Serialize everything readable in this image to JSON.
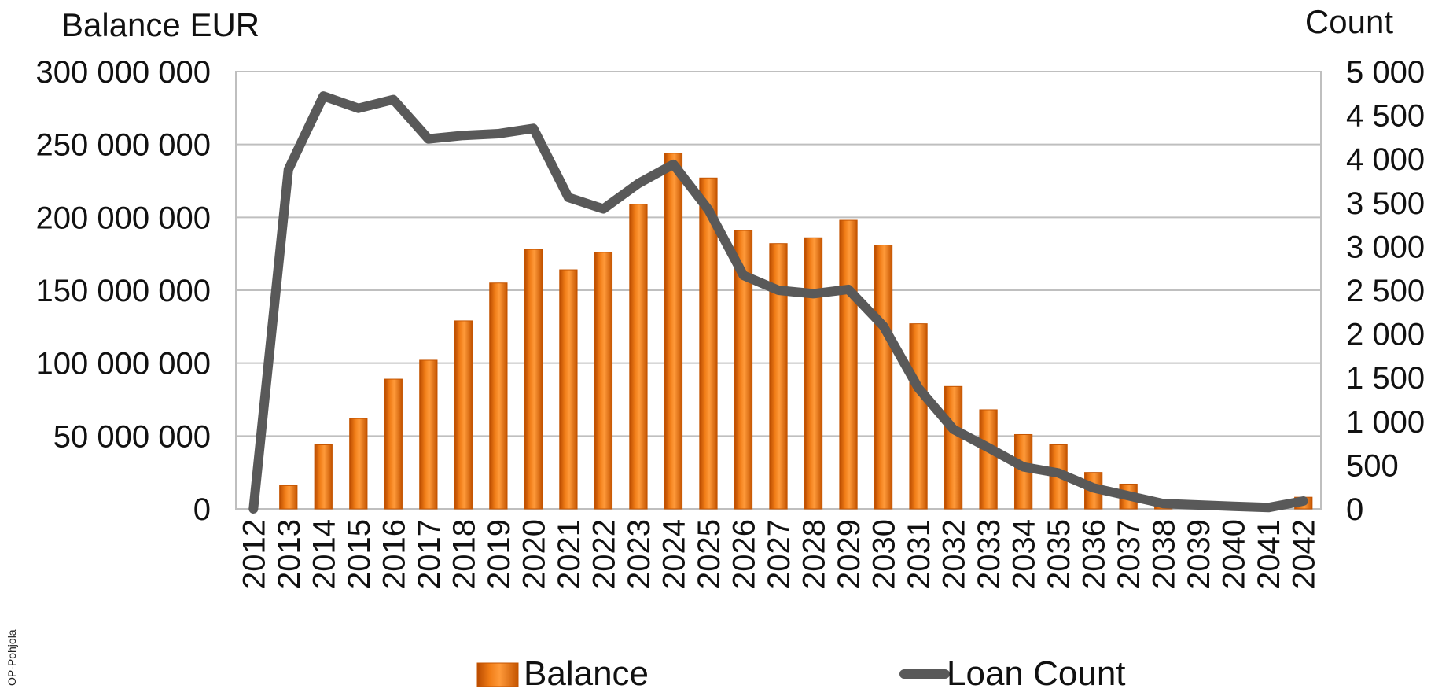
{
  "source_label": "OP-Pohjola",
  "chart_data": {
    "type": "bar",
    "categories": [
      "2012",
      "2013",
      "2014",
      "2015",
      "2016",
      "2017",
      "2018",
      "2019",
      "2020",
      "2021",
      "2022",
      "2023",
      "2024",
      "2025",
      "2026",
      "2027",
      "2028",
      "2029",
      "2030",
      "2031",
      "2032",
      "2033",
      "2034",
      "2035",
      "2036",
      "2037",
      "2038",
      "2039",
      "2040",
      "2041",
      "2042"
    ],
    "ylabel": "Balance EUR",
    "y2label": "Count",
    "ylim": [
      0,
      300000000
    ],
    "y2lim": [
      0,
      5000
    ],
    "yticks": [
      {
        "value": 0,
        "label": "0"
      },
      {
        "value": 50000000,
        "label": "50 000 000"
      },
      {
        "value": 100000000,
        "label": "100 000 000"
      },
      {
        "value": 150000000,
        "label": "150 000 000"
      },
      {
        "value": 200000000,
        "label": "200 000 000"
      },
      {
        "value": 250000000,
        "label": "250 000 000"
      },
      {
        "value": 300000000,
        "label": "300 000 000"
      }
    ],
    "y2ticks": [
      {
        "value": 0,
        "label": "0"
      },
      {
        "value": 500,
        "label": "500"
      },
      {
        "value": 1000,
        "label": "1 000"
      },
      {
        "value": 1500,
        "label": "1 500"
      },
      {
        "value": 2000,
        "label": "2 000"
      },
      {
        "value": 2500,
        "label": "2 500"
      },
      {
        "value": 3000,
        "label": "3 000"
      },
      {
        "value": 3500,
        "label": "3 500"
      },
      {
        "value": 4000,
        "label": "4 000"
      },
      {
        "value": 4500,
        "label": "4 500"
      },
      {
        "value": 5000,
        "label": "5 000"
      }
    ],
    "grid": true,
    "legend": "bottom",
    "series": [
      {
        "name": "Balance",
        "type": "bar",
        "axis": "left",
        "color": "#f07c16",
        "values": [
          0,
          16000000,
          44000000,
          62000000,
          89000000,
          102000000,
          129000000,
          155000000,
          178000000,
          164000000,
          176000000,
          209000000,
          244000000,
          227000000,
          191000000,
          182000000,
          186000000,
          198000000,
          181000000,
          127000000,
          84000000,
          68000000,
          51000000,
          44000000,
          25000000,
          17000000,
          3000000,
          1500000,
          1500000,
          1500000,
          8000000
        ]
      },
      {
        "name": "Loan Count",
        "type": "line",
        "axis": "right",
        "color": "#595959",
        "values": [
          0,
          3880,
          4720,
          4580,
          4680,
          4230,
          4270,
          4290,
          4350,
          3560,
          3430,
          3720,
          3940,
          3420,
          2670,
          2500,
          2460,
          2510,
          2090,
          1380,
          910,
          700,
          480,
          410,
          240,
          150,
          60,
          45,
          30,
          15,
          90
        ]
      }
    ]
  }
}
